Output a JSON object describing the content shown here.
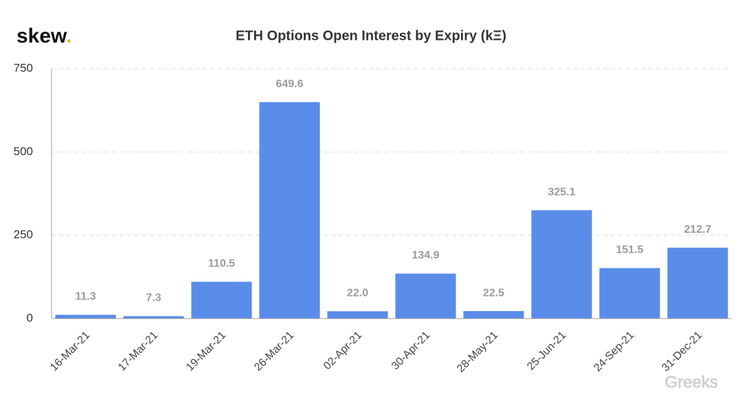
{
  "logo": {
    "text": "skew",
    "dot": "."
  },
  "watermark": "Greeks",
  "chart_data": {
    "type": "bar",
    "title": "ETH Options Open Interest by Expiry (kΞ)",
    "categories": [
      "16-Mar-21",
      "17-Mar-21",
      "19-Mar-21",
      "26-Mar-21",
      "02-Apr-21",
      "30-Apr-21",
      "28-May-21",
      "25-Jun-21",
      "24-Sep-21",
      "31-Dec-21"
    ],
    "values": [
      11.3,
      7.3,
      110.5,
      649.6,
      22.0,
      134.9,
      22.5,
      325.1,
      151.5,
      212.7
    ],
    "value_labels": [
      "11.3",
      "7.3",
      "110.5",
      "649.6",
      "22.0",
      "134.9",
      "22.5",
      "325.1",
      "151.5",
      "212.7"
    ],
    "color": "#5a8ce9",
    "ylim": [
      0,
      750
    ],
    "yticks": [
      0,
      250,
      500,
      750
    ],
    "grid": true
  }
}
